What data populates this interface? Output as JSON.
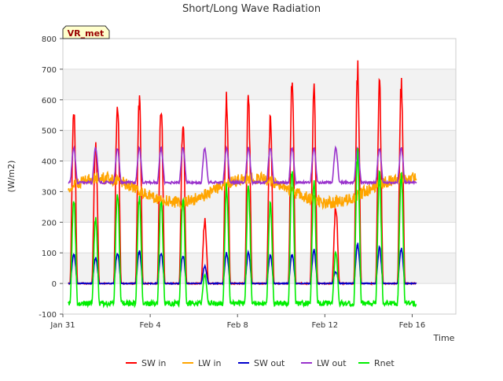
{
  "chart_data": {
    "type": "line",
    "title": "Short/Long Wave Radiation",
    "xlabel": "Time",
    "ylabel": "(W/m2)",
    "site_label": "VR_met",
    "ylim": [
      -100,
      800
    ],
    "yticks": [
      -100,
      0,
      100,
      200,
      300,
      400,
      500,
      600,
      700,
      800
    ],
    "xlim": [
      "2023-01-31",
      "2023-02-18"
    ],
    "xticks": [
      {
        "date": "2023-01-31",
        "label": "Jan 31"
      },
      {
        "date": "2023-02-04",
        "label": "Feb 4"
      },
      {
        "date": "2023-02-08",
        "label": "Feb 8"
      },
      {
        "date": "2023-02-12",
        "label": "Feb 12"
      },
      {
        "date": "2023-02-16",
        "label": "Feb 16"
      }
    ],
    "grid": true,
    "legend": "bottom",
    "series": [
      {
        "name": "SW in",
        "color": "#ff0000",
        "daily_peaks": [
          595,
          490,
          630,
          633,
          628,
          550,
          215,
          633,
          633,
          558,
          697,
          658,
          262,
          740,
          680,
          690
        ]
      },
      {
        "name": "LW in",
        "color": "#ffa500",
        "range": [
          230,
          380
        ]
      },
      {
        "name": "SW out",
        "color": "#0000cc",
        "daily_peaks": [
          102,
          90,
          107,
          110,
          108,
          95,
          60,
          105,
          105,
          95,
          100,
          112,
          40,
          135,
          122,
          120
        ]
      },
      {
        "name": "LW out",
        "color": "#9932cc",
        "range": [
          310,
          465
        ]
      },
      {
        "name": "Rnet",
        "color": "#00ee00",
        "daily_peaks": [
          290,
          230,
          318,
          295,
          300,
          295,
          30,
          332,
          330,
          270,
          390,
          340,
          110,
          450,
          375,
          375
        ],
        "night_level": -65
      }
    ]
  }
}
